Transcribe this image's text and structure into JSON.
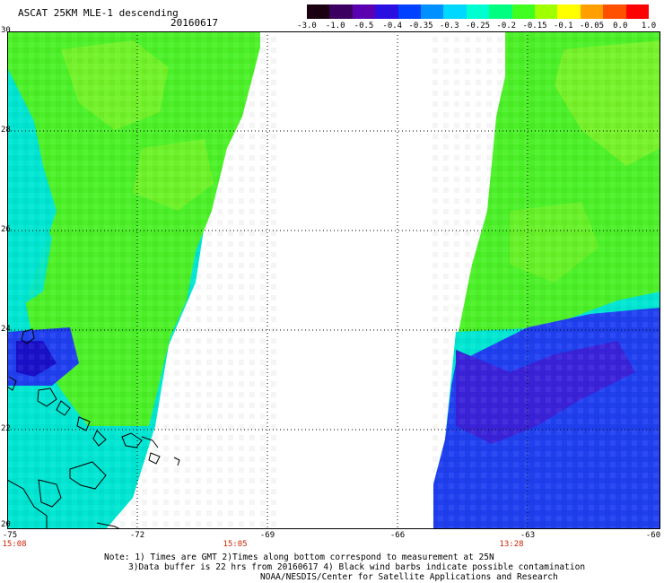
{
  "header": {
    "title": "ASCAT 25KM MLE-1 descending",
    "date": "20160617"
  },
  "colorbar": {
    "labels": [
      "-3.0",
      "-1.0",
      "-0.5",
      "-0.4",
      "-0.35",
      "-0.3",
      "-0.25",
      "-0.2",
      "-0.15",
      "-0.1",
      "-0.05",
      "0.0",
      "1.0"
    ],
    "colors": [
      "#1a0010",
      "#3b0060",
      "#5a00b0",
      "#2a10e0",
      "#0040ff",
      "#0090ff",
      "#00d8ff",
      "#00ffd0",
      "#00ff80",
      "#40ff20",
      "#a0ff00",
      "#ffff00",
      "#ffa000",
      "#ff5000",
      "#ff0000"
    ]
  },
  "map": {
    "y_labels": [
      "30",
      "28",
      "26",
      "24",
      "22",
      "20"
    ],
    "x_labels": [
      "-75",
      "-72",
      "-69",
      "-66",
      "-63",
      "-60"
    ],
    "times": [
      "15:08",
      "15:05",
      "13:28"
    ],
    "swath_colors": {
      "green": "#4cf028",
      "light_green": "#7cf22a",
      "cyan": "#00e6d2",
      "blue": "#2040f0",
      "deep_blue": "#3a22d8"
    }
  },
  "notes": {
    "line1": "Note: 1) Times are GMT 2)Times along bottom correspond to measurement at 25N",
    "line2": "3)Data buffer is 22 hrs from 20160617 4) Black wind barbs indicate possible contamination",
    "line3": "NOAA/NESDIS/Center for Satellite Applications and Research"
  }
}
